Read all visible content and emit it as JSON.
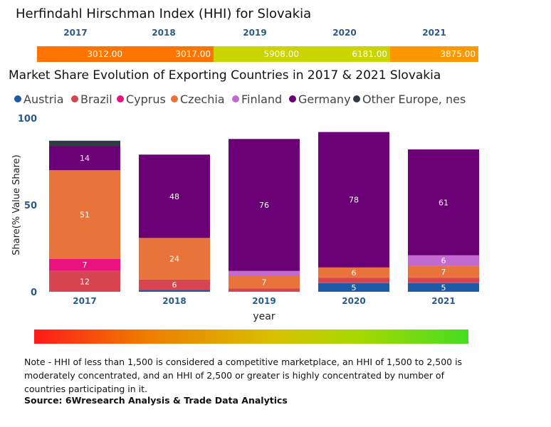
{
  "hhi": {
    "title": "Herfindahl Hirschman Index (HHI) for Slovakia",
    "cells": [
      {
        "year": "2017",
        "value": "3012.00",
        "color": "#ff7400"
      },
      {
        "year": "2018",
        "value": "3017.00",
        "color": "#ff7400"
      },
      {
        "year": "2019",
        "value": "5908.00",
        "color": "#c9d400"
      },
      {
        "year": "2020",
        "value": "6181.00",
        "color": "#c9d400"
      },
      {
        "year": "2021",
        "value": "3875.00",
        "color": "#ff9800"
      }
    ]
  },
  "chart_data": {
    "type": "bar",
    "stacked": true,
    "title": "Market Share Evolution of Exporting Countries in 2017 & 2021 Slovakia",
    "xlabel": "year",
    "ylabel": "Share(% Value Share)",
    "categories": [
      "2017",
      "2018",
      "2019",
      "2020",
      "2021"
    ],
    "ylim": [
      0,
      100
    ],
    "yticks": [
      "0",
      "50",
      "100"
    ],
    "series": [
      {
        "name": "Austria",
        "color": "#1f5aa6",
        "values": [
          0,
          1,
          0,
          5,
          5
        ],
        "labels": [
          "",
          "",
          "",
          "5",
          "5"
        ]
      },
      {
        "name": "Brazil",
        "color": "#d64550",
        "values": [
          12,
          6,
          2,
          3,
          3
        ],
        "labels": [
          "12",
          "6",
          "",
          "",
          ""
        ]
      },
      {
        "name": "Cyprus",
        "color": "#e8137e",
        "values": [
          7,
          0,
          0,
          0,
          0
        ],
        "labels": [
          "7",
          "",
          "",
          "",
          ""
        ]
      },
      {
        "name": "Czechia",
        "color": "#e8743b",
        "values": [
          51,
          24,
          7,
          6,
          7
        ],
        "labels": [
          "51",
          "24",
          "7",
          "6",
          "7"
        ]
      },
      {
        "name": "Finland",
        "color": "#c26ad0",
        "values": [
          0,
          0,
          3,
          0,
          6
        ],
        "labels": [
          "",
          "",
          "",
          "",
          "6"
        ]
      },
      {
        "name": "Germany",
        "color": "#6b0076",
        "values": [
          14,
          48,
          76,
          78,
          61
        ],
        "labels": [
          "14",
          "48",
          "76",
          "78",
          "61"
        ]
      },
      {
        "name": "Other Europe, nes",
        "color": "#333a44",
        "values": [
          3,
          0,
          0,
          0,
          0
        ],
        "labels": [
          "",
          "",
          "",
          "",
          ""
        ]
      }
    ]
  },
  "note": "Note - HHI of less than 1,500 is considered a competitive marketplace, an HHI of 1,500 to 2,500 is moderately concentrated, and an HHI of 2,500 or greater is highly concentrated by number of countries participating in it.",
  "source": "Source: 6Wresearch Analysis & Trade Data Analytics"
}
